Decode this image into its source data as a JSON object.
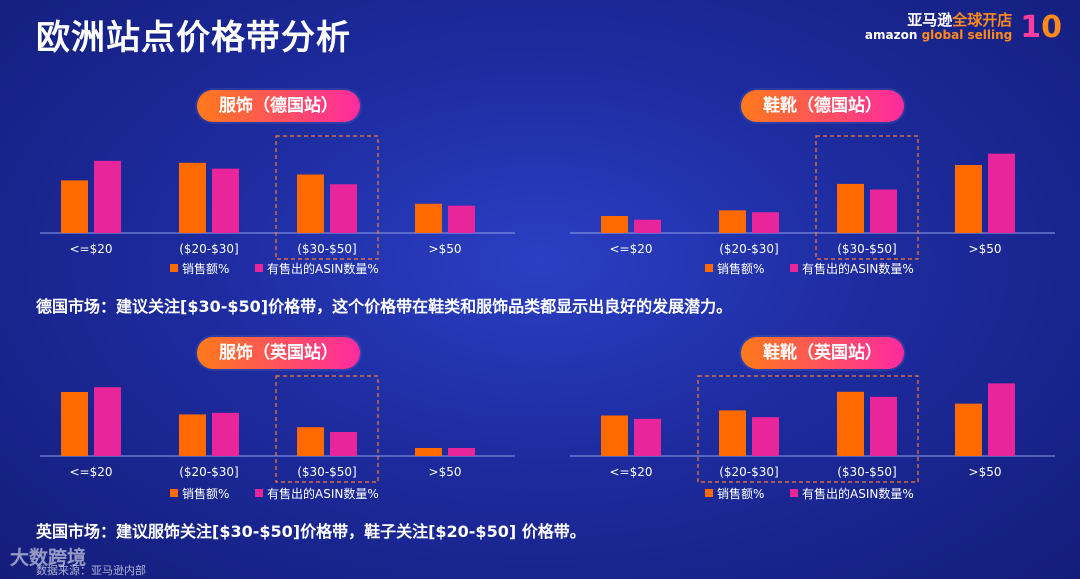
{
  "page": {
    "title": "欧洲站点价格带分析",
    "brand": {
      "cn_main": "亚马逊",
      "cn_accent": "全球开店",
      "en_main": "amazon",
      "en_accent": "global selling",
      "badge_a": "1",
      "badge_b": "0"
    },
    "note_de_label": "德国市场：",
    "note_de_text": "建议关注[$30-$50]价格带，这个价格带在鞋类和服饰品类都显示出良好的发展潜力。",
    "note_uk_label": "英国市场：",
    "note_uk_text": "建议服饰关注[$30-$50]价格带，鞋子关注[$20-$50] 价格带。",
    "footer_logo": "大数跨境",
    "footer_source": "数据来源：亚马逊内部"
  },
  "colors": {
    "sales": "#ff6a00",
    "asin": "#e8259a"
  },
  "chart_data": [
    {
      "type": "bar",
      "title": "服饰（德国站）",
      "categories": [
        "<=$20",
        "($20-$30]",
        "($30-$50]",
        ">$50"
      ],
      "series": [
        {
          "name": "销售额%",
          "values": [
            27,
            36,
            30,
            15
          ]
        },
        {
          "name": "有售出的ASIN数量%",
          "values": [
            37,
            33,
            25,
            14
          ]
        }
      ],
      "highlight": "($30-$50]",
      "ylim": [
        0,
        40
      ]
    },
    {
      "type": "bar",
      "title": "鞋靴（德国站）",
      "categories": [
        "<=$20",
        "($20-$30]",
        "($30-$50]",
        ">$50"
      ],
      "series": [
        {
          "name": "销售额%",
          "values": [
            9,
            12,
            26,
            36
          ]
        },
        {
          "name": "有售出的ASIN数量%",
          "values": [
            7,
            11,
            23,
            42
          ]
        }
      ],
      "highlight": "($30-$50]",
      "ylim": [
        0,
        45
      ]
    },
    {
      "type": "bar",
      "title": "服饰（英国站）",
      "categories": [
        "<=$20",
        "($20-$30]",
        "($30-$50]",
        ">$50"
      ],
      "series": [
        {
          "name": "销售额%",
          "values": [
            40,
            26,
            18,
            5
          ]
        },
        {
          "name": "有售出的ASIN数量%",
          "values": [
            43,
            27,
            15,
            5
          ]
        }
      ],
      "highlight": "($30-$50]",
      "ylim": [
        0,
        45
      ]
    },
    {
      "type": "bar",
      "title": "鞋靴（英国站）",
      "categories": [
        "<=$20",
        "($20-$30]",
        "($30-$50]",
        ">$50"
      ],
      "series": [
        {
          "name": "销售额%",
          "values": [
            24,
            27,
            38,
            31
          ]
        },
        {
          "name": "有售出的ASIN数量%",
          "values": [
            22,
            23,
            35,
            43
          ]
        }
      ],
      "highlight": "($20-$30]|($30-$50]",
      "ylim": [
        0,
        45
      ]
    }
  ]
}
